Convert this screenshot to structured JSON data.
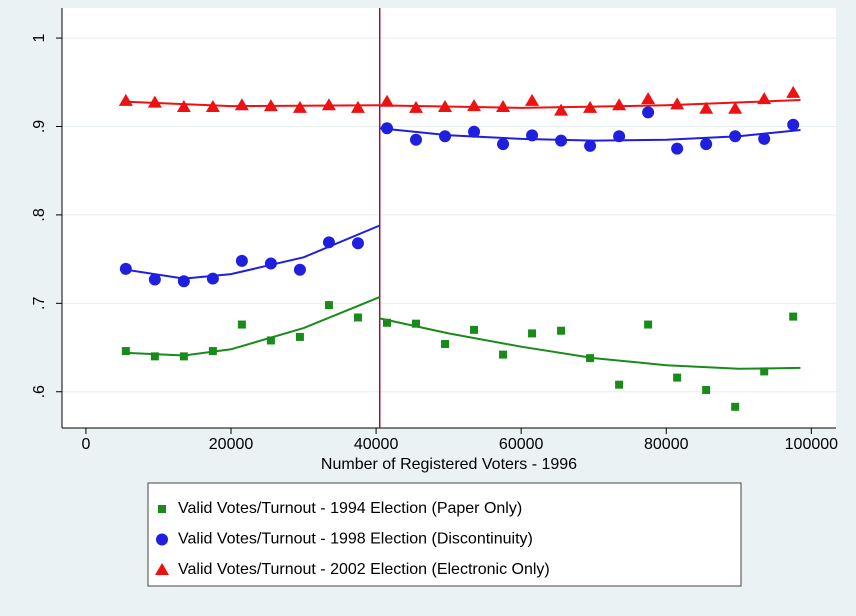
{
  "chart_data": {
    "type": "scatter",
    "xlabel": "Number of Registered Voters - 1996",
    "xlim": [
      -3300,
      103400
    ],
    "xticks": [
      0,
      20000,
      40000,
      60000,
      80000,
      100000
    ],
    "ylim": [
      0.559,
      1.034
    ],
    "yticks": [
      {
        "value": 0.6,
        "label": ".6"
      },
      {
        "value": 0.7,
        "label": ".7"
      },
      {
        "value": 0.8,
        "label": ".8"
      },
      {
        "value": 0.9,
        "label": ".9"
      },
      1
    ],
    "grid": true,
    "legend": "bottom",
    "cutoff": {
      "x": 40500,
      "color": "#8b1a3a"
    },
    "x": [
      5500,
      9500,
      13500,
      17500,
      21500,
      25500,
      29500,
      33500,
      37500,
      41500,
      45500,
      49500,
      53500,
      57500,
      61500,
      65500,
      69500,
      73500,
      77500,
      81500,
      85500,
      89500,
      93500,
      97500
    ],
    "series": [
      {
        "name": "Valid Votes/Turnout - 1994 Election (Paper Only)",
        "color": "#1a8a1a",
        "marker": "square",
        "values": [
          0.646,
          0.64,
          0.64,
          0.646,
          0.676,
          0.658,
          0.662,
          0.698,
          0.684,
          0.678,
          0.677,
          0.654,
          0.67,
          0.642,
          0.666,
          0.669,
          0.638,
          0.608,
          0.676,
          0.616,
          0.602,
          0.583,
          0.623,
          0.685
        ]
      },
      {
        "name": "Valid Votes/Turnout - 1998 Election (Discontinuity)",
        "color": "#1f1fe0",
        "marker": "circle",
        "values": [
          0.739,
          0.727,
          0.725,
          0.728,
          0.748,
          0.745,
          0.738,
          0.769,
          0.768,
          0.898,
          0.885,
          0.889,
          0.894,
          0.88,
          0.89,
          0.884,
          0.878,
          0.889,
          0.916,
          0.875,
          0.88,
          0.889,
          0.886,
          0.902
        ]
      },
      {
        "name": "Valid Votes/Turnout - 2002 Election (Electronic Only)",
        "color": "#ee1111",
        "marker": "triangle",
        "values": [
          0.929,
          0.927,
          0.922,
          0.922,
          0.924,
          0.923,
          0.921,
          0.924,
          0.921,
          0.928,
          0.921,
          0.922,
          0.923,
          0.922,
          0.929,
          0.918,
          0.921,
          0.924,
          0.931,
          0.925,
          0.92,
          0.92,
          0.931,
          0.938
        ]
      }
    ],
    "fits": [
      {
        "color": "#1a8a1a",
        "x": [
          5500,
          13500,
          20000,
          30000,
          40500
        ],
        "values": [
          0.644,
          0.641,
          0.648,
          0.672,
          0.707
        ]
      },
      {
        "color": "#1a8a1a",
        "x": [
          40500,
          50000,
          60000,
          70000,
          80000,
          90000,
          98500
        ],
        "values": [
          0.683,
          0.666,
          0.651,
          0.638,
          0.63,
          0.626,
          0.627
        ]
      },
      {
        "color": "#1f1fe0",
        "x": [
          5500,
          13500,
          20000,
          30000,
          40500
        ],
        "values": [
          0.738,
          0.728,
          0.733,
          0.752,
          0.788
        ]
      },
      {
        "color": "#1f1fe0",
        "x": [
          40500,
          50000,
          60000,
          70000,
          80000,
          90000,
          98500
        ],
        "values": [
          0.898,
          0.89,
          0.886,
          0.884,
          0.885,
          0.889,
          0.896
        ]
      },
      {
        "color": "#ee1111",
        "x": [
          5500,
          20000,
          40500
        ],
        "values": [
          0.928,
          0.923,
          0.924
        ]
      },
      {
        "color": "#ee1111",
        "x": [
          40500,
          60000,
          80000,
          98500
        ],
        "values": [
          0.924,
          0.921,
          0.924,
          0.93
        ]
      }
    ]
  }
}
